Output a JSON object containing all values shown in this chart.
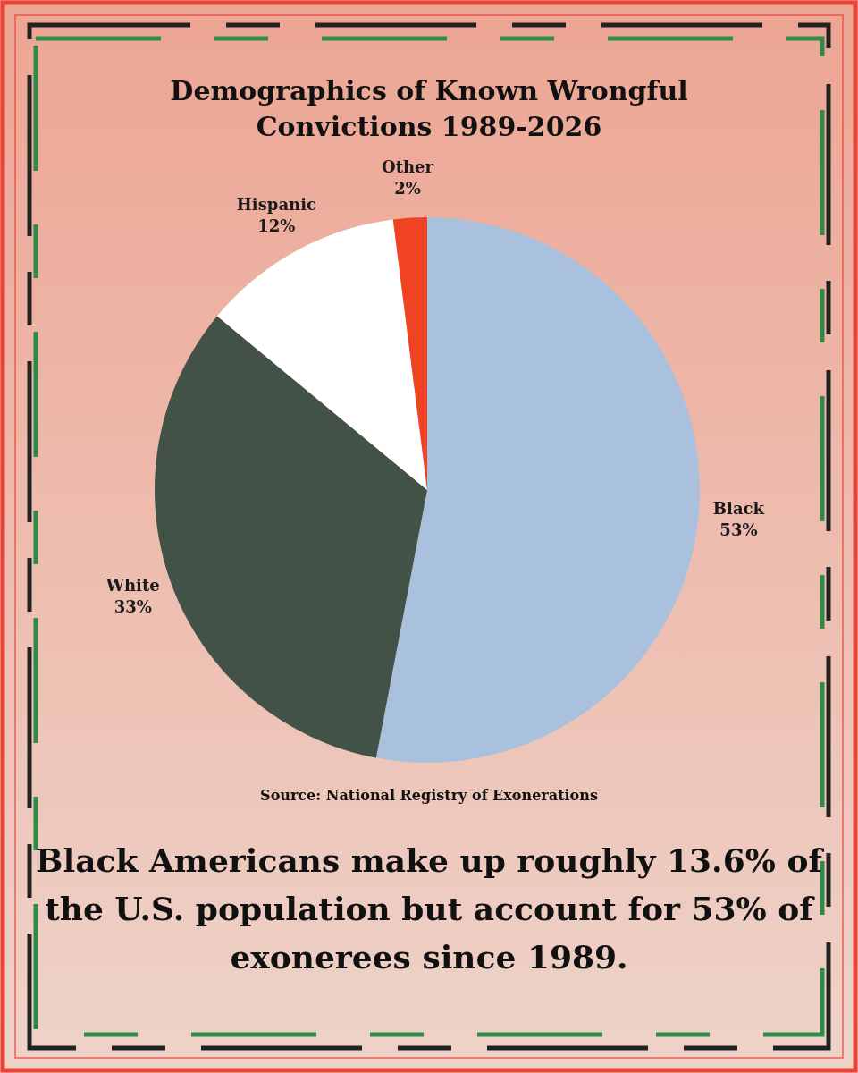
{
  "chart_data": {
    "type": "pie",
    "title": "Demographics of Known Wrongful Convictions 1989-2026",
    "categories": [
      "Black",
      "White",
      "Hispanic",
      "Other"
    ],
    "values": [
      53,
      33,
      12,
      2
    ],
    "colors": [
      "#a9c1dc",
      "#435246",
      "#ffffff",
      "#f04323"
    ],
    "value_labels": [
      "53%",
      "33%",
      "12%",
      "2%"
    ],
    "annotations": [
      "Source: National Registry of Exonerations",
      "Black Americans make up roughly 13.6% of the U.S. population but account for 53% of exonerees since 1989."
    ]
  }
}
